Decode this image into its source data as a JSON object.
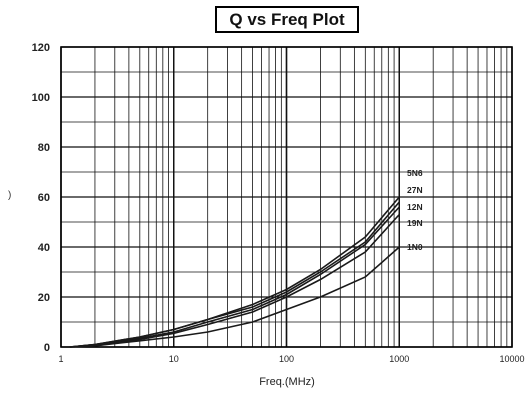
{
  "chart_data": {
    "type": "line",
    "title": "Q vs Freq Plot",
    "xlabel": "Freq.(MHz)",
    "ylabel": ")",
    "xscale": "log",
    "xlim": [
      1,
      10000
    ],
    "ylim": [
      0,
      120
    ],
    "xticks": [
      1,
      10,
      100,
      1000,
      10000
    ],
    "xtick_labels": [
      "1",
      "10",
      "100",
      "1000",
      "10000"
    ],
    "yticks": [
      0,
      20,
      40,
      60,
      80,
      100,
      120
    ],
    "ytick_labels": [
      "0",
      "20",
      "40",
      "60",
      "80",
      "100",
      "120"
    ],
    "grid": true,
    "legend": "inline labels at right end of curves",
    "series": [
      {
        "name": "5N6",
        "x": [
          1.2,
          2,
          5,
          10,
          20,
          50,
          100,
          200,
          500,
          1000
        ],
        "y": [
          0,
          1,
          4,
          7,
          11,
          17,
          23,
          31,
          44,
          60
        ]
      },
      {
        "name": "27N",
        "x": [
          1.2,
          2,
          5,
          10,
          20,
          50,
          100,
          200,
          500,
          1000
        ],
        "y": [
          0,
          1,
          4,
          7,
          11,
          16,
          22,
          30,
          42,
          58
        ]
      },
      {
        "name": "12N",
        "x": [
          1.2,
          2,
          5,
          10,
          20,
          50,
          100,
          200,
          500,
          1000
        ],
        "y": [
          0,
          1,
          3.5,
          6,
          10,
          15,
          21,
          29,
          41,
          56
        ]
      },
      {
        "name": "19N",
        "x": [
          1.2,
          2,
          5,
          10,
          20,
          50,
          100,
          200,
          500,
          1000
        ],
        "y": [
          0,
          0.5,
          3,
          5.5,
          9,
          14,
          20,
          27,
          38,
          53
        ]
      },
      {
        "name": "1N0",
        "x": [
          1.2,
          2,
          5,
          10,
          20,
          50,
          100,
          200,
          500,
          1000
        ],
        "y": [
          0,
          0.5,
          2.5,
          4,
          6,
          10,
          15,
          20,
          28,
          40
        ]
      }
    ]
  }
}
